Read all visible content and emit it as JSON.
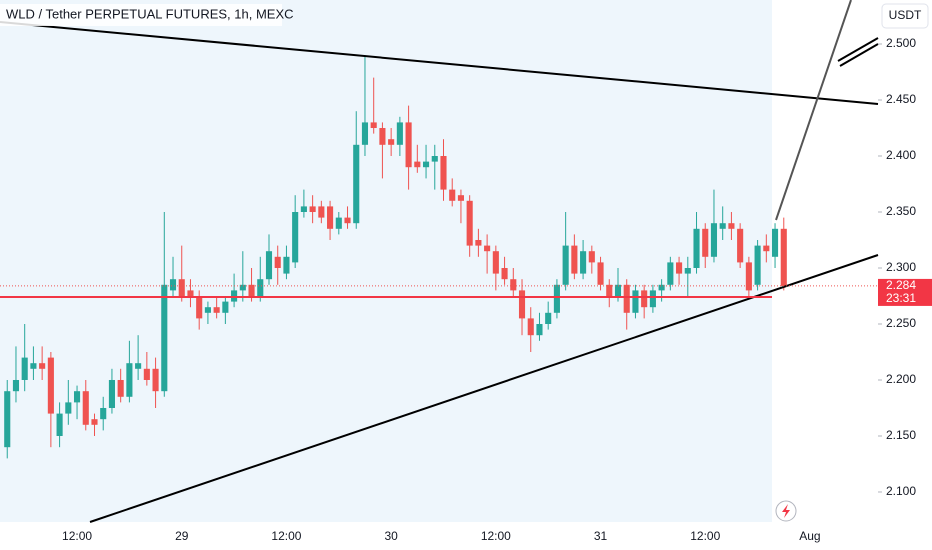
{
  "chart_data": {
    "type": "candlestick",
    "title": "WLD / Tether PERPETUAL FUTURES, 1h, MEXC",
    "currency": "USDT",
    "countdown": "23:31",
    "up_color": "#26a69a",
    "down_color": "#ef5350",
    "categories": [
      null,
      null,
      null,
      null,
      null,
      null,
      null,
      null,
      "12:00",
      null,
      null,
      null,
      null,
      null,
      null,
      null,
      null,
      null,
      null,
      null,
      "29",
      null,
      null,
      null,
      null,
      null,
      null,
      null,
      null,
      null,
      null,
      null,
      "12:00",
      null,
      null,
      null,
      null,
      null,
      null,
      null,
      null,
      null,
      null,
      null,
      "30",
      null,
      null,
      null,
      null,
      null,
      null,
      null,
      null,
      null,
      null,
      null,
      "12:00",
      null,
      null,
      null,
      null,
      null,
      null,
      null,
      null,
      null,
      null,
      null,
      "31",
      null,
      null,
      null,
      null,
      null,
      null,
      null,
      null,
      null,
      null,
      null,
      "12:00",
      null,
      null,
      null,
      null,
      null,
      null,
      null,
      null,
      null,
      null,
      null,
      "Aug"
    ],
    "open": [
      2.14,
      2.19,
      2.2,
      2.21,
      2.215,
      2.22,
      2.15,
      2.17,
      2.18,
      2.19,
      2.165,
      2.165,
      2.175,
      2.2,
      2.185,
      2.21,
      2.21,
      2.21,
      2.19,
      2.28,
      2.29,
      2.28,
      2.275,
      2.26,
      2.265,
      2.26,
      2.27,
      2.28,
      2.285,
      2.275,
      2.29,
      2.31,
      2.295,
      2.305,
      2.35,
      2.355,
      2.355,
      2.355,
      2.335,
      2.345,
      2.34,
      2.41,
      2.43,
      2.425,
      2.415,
      2.41,
      2.43,
      2.395,
      2.39,
      2.395,
      2.4,
      2.37,
      2.365,
      2.36,
      2.325,
      2.32,
      2.315,
      2.3,
      2.29,
      2.28,
      2.255,
      2.24,
      2.25,
      2.26,
      2.285,
      2.32,
      2.295,
      2.315,
      2.305,
      2.285,
      2.275,
      2.285,
      2.26,
      2.28,
      2.265,
      2.28,
      2.285,
      2.305,
      2.295,
      2.3,
      2.335,
      2.31,
      2.335,
      2.34,
      2.335,
      2.305,
      2.285,
      2.32,
      2.31,
      2.335,
      null,
      null,
      null
    ],
    "high": [
      2.2,
      2.23,
      2.25,
      2.23,
      2.23,
      2.225,
      2.18,
      2.2,
      2.195,
      2.2,
      2.17,
      2.185,
      2.21,
      2.21,
      2.235,
      2.24,
      2.225,
      2.22,
      2.35,
      2.31,
      2.32,
      2.29,
      2.28,
      2.27,
      2.275,
      2.275,
      2.295,
      2.315,
      2.3,
      2.31,
      2.33,
      2.32,
      2.32,
      2.365,
      2.37,
      2.365,
      2.36,
      2.36,
      2.35,
      2.355,
      2.44,
      2.49,
      2.47,
      2.43,
      2.425,
      2.435,
      2.445,
      2.41,
      2.41,
      2.41,
      2.415,
      2.38,
      2.37,
      2.365,
      2.335,
      2.33,
      2.32,
      2.31,
      2.3,
      2.29,
      2.265,
      2.26,
      2.27,
      2.29,
      2.35,
      2.33,
      2.325,
      2.32,
      2.31,
      2.29,
      2.3,
      2.29,
      2.285,
      2.285,
      2.285,
      2.29,
      2.31,
      2.31,
      2.31,
      2.35,
      2.34,
      2.37,
      2.355,
      2.35,
      2.34,
      2.31,
      2.325,
      2.33,
      2.34,
      2.345,
      null,
      null,
      null
    ],
    "low": [
      2.13,
      2.18,
      2.19,
      2.2,
      2.2,
      2.14,
      2.14,
      2.16,
      2.165,
      2.155,
      2.15,
      2.155,
      2.17,
      2.18,
      2.18,
      2.2,
      2.195,
      2.175,
      2.185,
      2.275,
      2.27,
      2.265,
      2.245,
      2.25,
      2.255,
      2.25,
      2.265,
      2.27,
      2.27,
      2.27,
      2.285,
      2.285,
      2.29,
      2.3,
      2.345,
      2.34,
      2.34,
      2.325,
      2.33,
      2.335,
      2.335,
      2.4,
      2.42,
      2.38,
      2.4,
      2.4,
      2.37,
      2.385,
      2.38,
      2.37,
      2.36,
      2.355,
      2.34,
      2.31,
      2.31,
      2.295,
      2.28,
      2.285,
      2.275,
      2.24,
      2.225,
      2.235,
      2.245,
      2.255,
      2.28,
      2.29,
      2.29,
      2.295,
      2.28,
      2.265,
      2.27,
      2.245,
      2.255,
      2.255,
      2.26,
      2.27,
      2.28,
      2.285,
      2.275,
      2.295,
      2.3,
      2.305,
      2.325,
      2.325,
      2.3,
      2.275,
      2.28,
      2.305,
      2.3,
      2.28,
      null,
      null,
      null
    ],
    "close": [
      2.19,
      2.2,
      2.22,
      2.215,
      2.21,
      2.17,
      2.17,
      2.18,
      2.19,
      2.16,
      2.16,
      2.175,
      2.2,
      2.185,
      2.215,
      2.215,
      2.2,
      2.19,
      2.285,
      2.29,
      2.275,
      2.275,
      2.255,
      2.265,
      2.26,
      2.27,
      2.28,
      2.285,
      2.275,
      2.29,
      2.315,
      2.3,
      2.31,
      2.35,
      2.355,
      2.35,
      2.345,
      2.335,
      2.345,
      2.34,
      2.41,
      2.43,
      2.425,
      2.41,
      2.41,
      2.43,
      2.39,
      2.39,
      2.395,
      2.4,
      2.37,
      2.36,
      2.36,
      2.32,
      2.32,
      2.315,
      2.295,
      2.29,
      2.28,
      2.255,
      2.24,
      2.25,
      2.26,
      2.285,
      2.32,
      2.295,
      2.315,
      2.305,
      2.285,
      2.275,
      2.285,
      2.26,
      2.28,
      2.265,
      2.28,
      2.285,
      2.305,
      2.295,
      2.3,
      2.335,
      2.31,
      2.34,
      2.34,
      2.335,
      2.305,
      2.28,
      2.32,
      2.315,
      2.335,
      2.284,
      null,
      null,
      null
    ],
    "xlim": [
      -0.83,
      99.8
    ],
    "ylim": [
      2.0732,
      2.5393
    ],
    "yticks": [
      {
        "value": 2.1,
        "label": "2.100"
      },
      {
        "value": 2.15,
        "label": "2.150"
      },
      {
        "value": 2.2,
        "label": "2.200"
      },
      {
        "value": 2.25,
        "label": "2.250"
      },
      {
        "value": 2.3,
        "label": "2.300"
      },
      {
        "value": 2.35,
        "label": "2.350"
      },
      {
        "value": 2.4,
        "label": "2.400"
      },
      {
        "value": 2.45,
        "label": "2.450"
      },
      {
        "value": 2.5,
        "label": "2.500"
      }
    ]
  }
}
